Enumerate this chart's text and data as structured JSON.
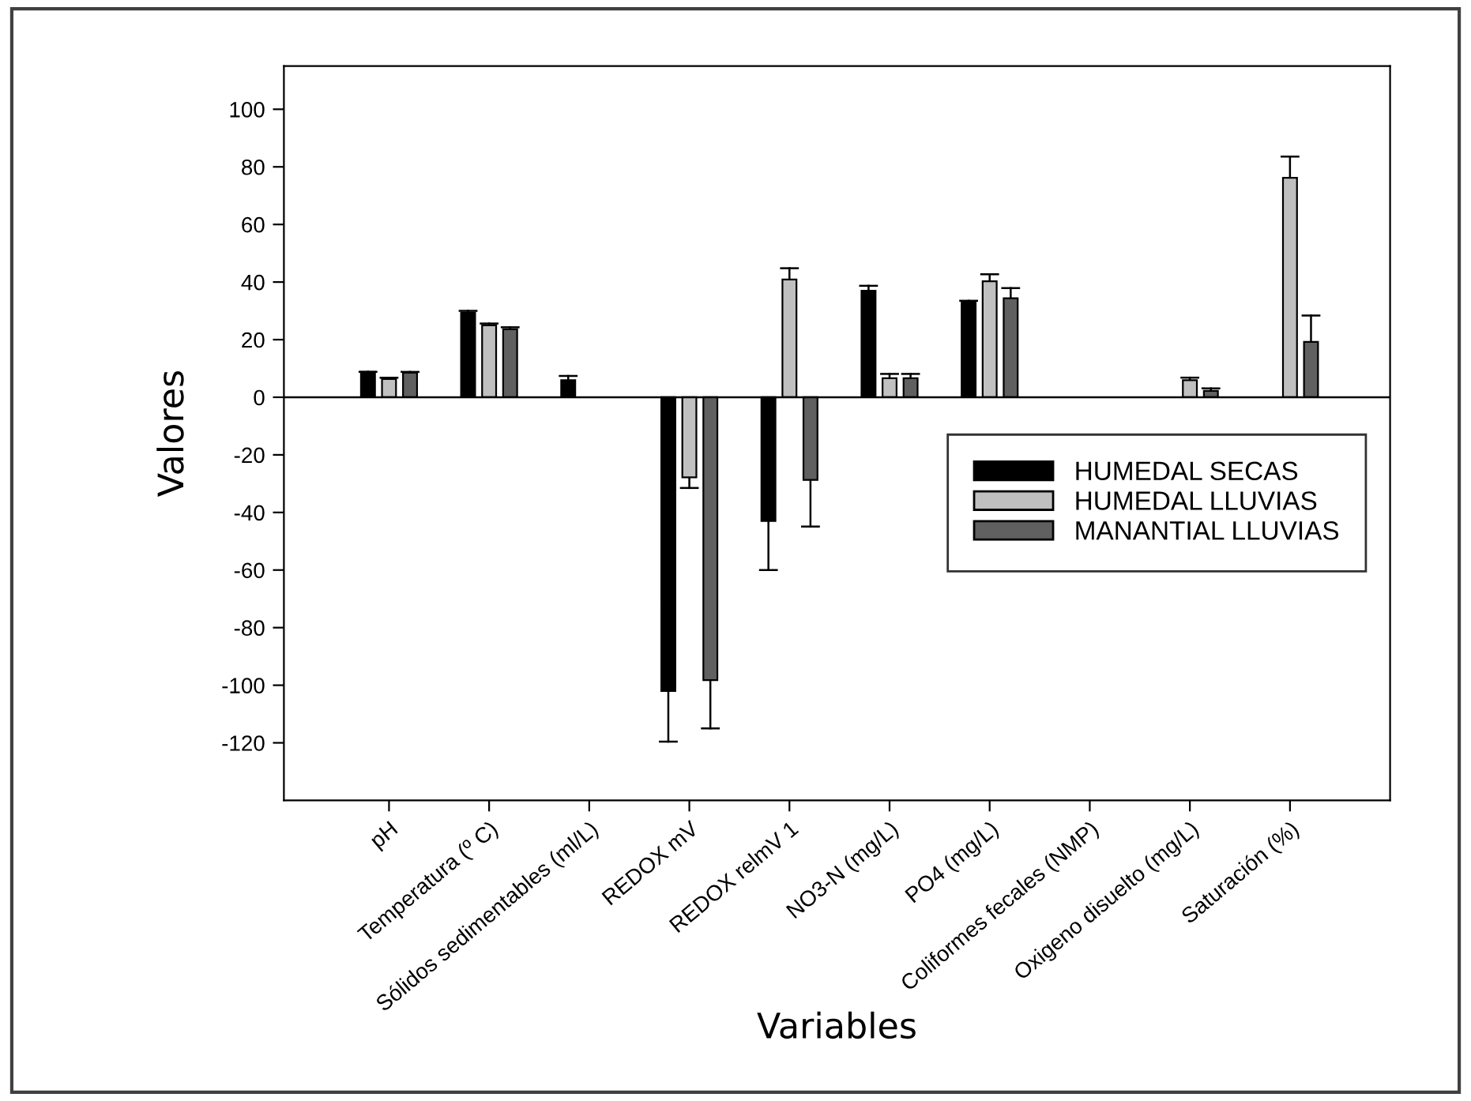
{
  "chart_data": {
    "type": "bar",
    "xlabel": "Variables",
    "ylabel": "Valores",
    "categories": [
      "pH",
      "Temperatura (º C)",
      "Sólidos sedimentables (ml/L)",
      "REDOX mV",
      "REDOX relmV 1",
      "NO3-N (mg/L)",
      "PO4 (mg/L)",
      "Coliformes fecales (NMP)",
      "Oxigeno disuelto (mg/L)",
      "Saturación (%)"
    ],
    "series": [
      {
        "name": "HUMEDAL SECAS",
        "color": "#000000",
        "values": [
          8.8,
          29.4,
          5.9,
          -102,
          -43,
          37,
          33.2,
          null,
          null,
          null
        ],
        "errors": [
          [
            8.8,
            8.8
          ],
          [
            29.4,
            30
          ],
          [
            5.9,
            7.4
          ],
          [
            -119.6,
            -102
          ],
          [
            -60,
            -43
          ],
          [
            37,
            38.7
          ],
          [
            33.2,
            33.5
          ],
          null,
          null,
          null
        ]
      },
      {
        "name": "HUMEDAL LLUVIAS",
        "color": "#c0c0c0",
        "values": [
          6.3,
          25,
          null,
          -27.8,
          40.9,
          6.6,
          40.3,
          null,
          5.9,
          76.2
        ],
        "errors": [
          [
            6.3,
            6.8
          ],
          [
            25,
            25.6
          ],
          null,
          [
            -31.5,
            -27.8
          ],
          [
            40.9,
            44.8
          ],
          [
            6.6,
            8.1
          ],
          [
            40.3,
            42.7
          ],
          null,
          [
            5.9,
            6.8
          ],
          [
            76.2,
            83.6
          ]
        ]
      },
      {
        "name": "MANANTIAL LLUVIAS",
        "color": "#606060",
        "values": [
          8.5,
          23.6,
          null,
          -98.2,
          -28.7,
          6.6,
          34.4,
          null,
          2.2,
          19.2
        ],
        "errors": [
          [
            8.5,
            8.8
          ],
          [
            23.6,
            24.3
          ],
          null,
          [
            -115,
            -98.2
          ],
          [
            -44.9,
            -28.7
          ],
          [
            6.6,
            8.1
          ],
          [
            34.4,
            37.9
          ],
          null,
          [
            2.2,
            3.1
          ],
          [
            19.2,
            28.4
          ]
        ]
      }
    ],
    "ylim": [
      -140,
      115
    ],
    "yticks": [
      -120,
      -100,
      -80,
      -60,
      -40,
      -20,
      0,
      20,
      40,
      60,
      80,
      100
    ],
    "ref_lines": [
      {
        "axis": "y",
        "value": 0,
        "color": "#000000"
      }
    ],
    "legend": "center right",
    "grid": false
  }
}
